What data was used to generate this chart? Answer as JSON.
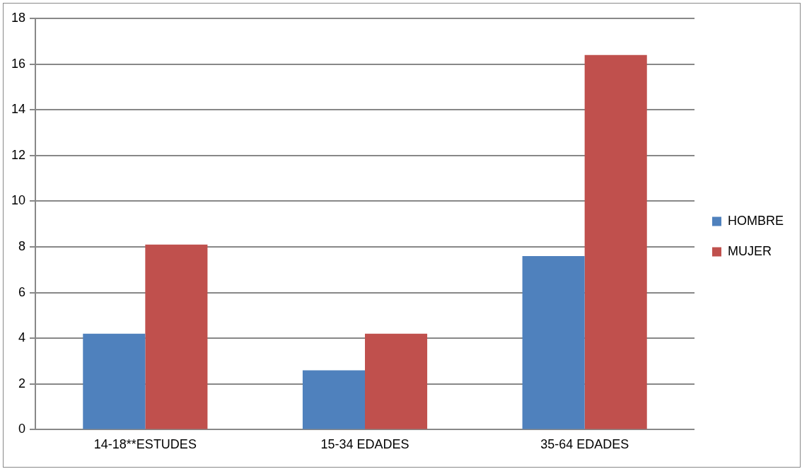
{
  "chart_data": {
    "type": "bar",
    "categories": [
      "14-18**ESTUDES",
      "15-34 EDADES",
      "35-64 EDADES"
    ],
    "series": [
      {
        "name": "HOMBRE",
        "color": "#4f81bd",
        "values": [
          4.2,
          2.6,
          7.6
        ]
      },
      {
        "name": "MUJER",
        "color": "#c0504d",
        "values": [
          8.1,
          4.2,
          16.4
        ]
      }
    ],
    "ylim": [
      0,
      18
    ],
    "yticks": [
      0,
      2,
      4,
      6,
      8,
      10,
      12,
      14,
      16,
      18
    ],
    "grid": "y",
    "legend": "right"
  }
}
